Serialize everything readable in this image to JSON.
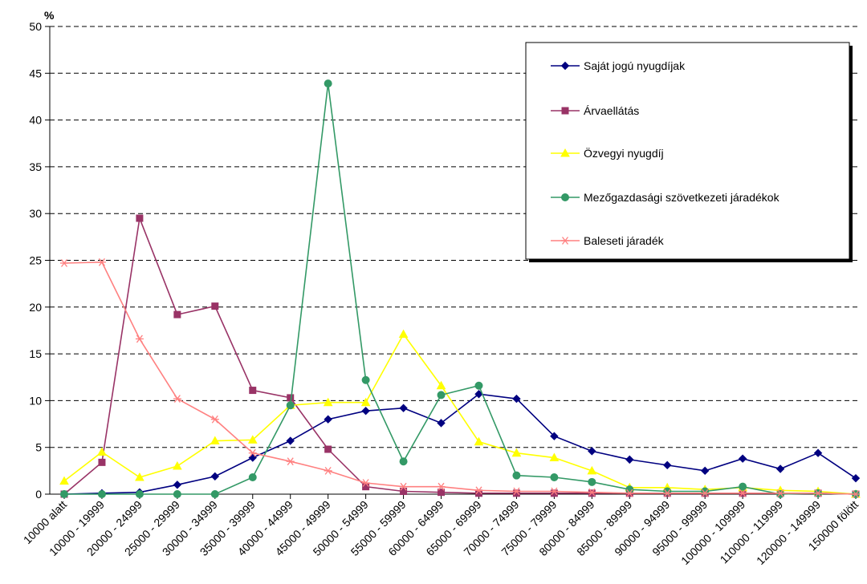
{
  "chart_data": {
    "type": "line",
    "ylabel": "%",
    "ylim": [
      0,
      50
    ],
    "yticks": [
      0,
      5,
      10,
      15,
      20,
      25,
      30,
      35,
      40,
      45,
      50
    ],
    "grid": "horizontal dashed",
    "legend_position": "top-right",
    "categories": [
      "10000 alatt",
      "10000 - 19999",
      "20000 - 24999",
      "25000 - 29999",
      "30000 - 34999",
      "35000 - 39999",
      "40000 - 44999",
      "45000 - 49999",
      "50000 - 54999",
      "55000 - 59999",
      "60000 - 64999",
      "65000 - 69999",
      "70000 - 74999",
      "75000 - 79999",
      "80000 - 84999",
      "85000 - 89999",
      "90000 - 94999",
      "95000 - 99999",
      "100000 - 109999",
      "110000 - 119999",
      "120000 - 149999",
      "150000 fölött"
    ],
    "series": [
      {
        "name": "Saját jogú nyugdíjak",
        "color": "#000080",
        "marker": "diamond",
        "values": [
          0.0,
          0.1,
          0.2,
          1.0,
          1.9,
          3.9,
          5.7,
          8.0,
          8.9,
          9.2,
          7.6,
          10.7,
          10.2,
          6.2,
          4.6,
          3.7,
          3.1,
          2.5,
          3.8,
          2.7,
          4.4,
          1.7
        ]
      },
      {
        "name": "Árvaellátás",
        "color": "#993366",
        "marker": "square",
        "values": [
          0.0,
          3.4,
          29.5,
          19.2,
          20.1,
          11.1,
          10.3,
          4.8,
          0.8,
          0.3,
          0.2,
          0.1,
          0.1,
          0.1,
          0.1,
          0.1,
          0.1,
          0.1,
          0.1,
          0.1,
          0.1,
          0.0
        ]
      },
      {
        "name": "Özvegyi nyugdíj",
        "color": "#FFFF00",
        "marker": "triangle",
        "values": [
          1.4,
          4.5,
          1.8,
          3.0,
          5.7,
          5.8,
          9.5,
          9.8,
          9.8,
          17.1,
          11.6,
          5.6,
          4.4,
          3.9,
          2.5,
          0.7,
          0.7,
          0.5,
          0.7,
          0.4,
          0.3,
          0.0
        ]
      },
      {
        "name": "Mezőgazdasági szövetkezeti járadékok",
        "color": "#339966",
        "marker": "circle",
        "values": [
          0.0,
          0.0,
          0.0,
          0.0,
          0.0,
          1.8,
          9.5,
          43.9,
          12.2,
          3.5,
          10.6,
          11.6,
          2.0,
          1.8,
          1.3,
          0.5,
          0.3,
          0.3,
          0.8,
          0.0,
          0.1,
          0.0
        ]
      },
      {
        "name": "Baleseti járadék",
        "color": "#FF8080",
        "marker": "asterisk",
        "values": [
          24.7,
          24.8,
          16.6,
          10.2,
          8.0,
          4.4,
          3.5,
          2.5,
          1.2,
          0.8,
          0.8,
          0.4,
          0.3,
          0.3,
          0.2,
          0.1,
          0.1,
          0.1,
          0.1,
          0.1,
          0.1,
          0.0
        ]
      }
    ]
  }
}
